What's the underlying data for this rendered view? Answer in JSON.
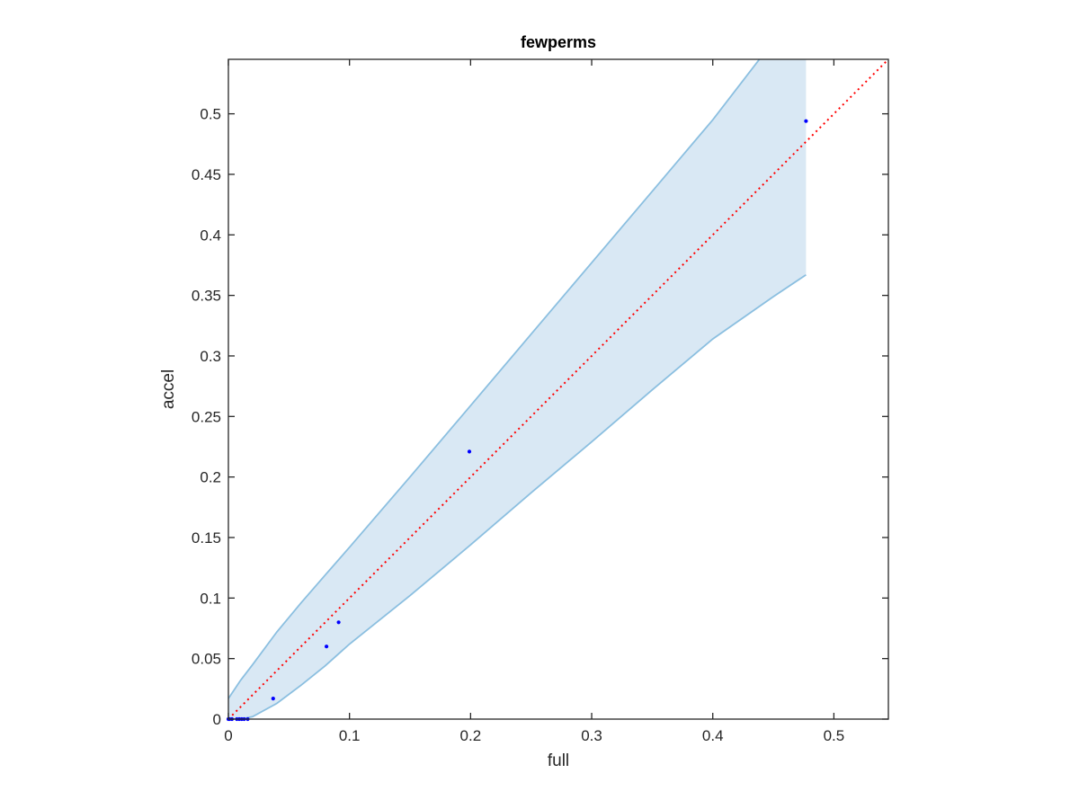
{
  "chart_data": {
    "type": "scatter",
    "title": "fewperms",
    "xlabel": "full",
    "ylabel": "accel",
    "xlim": [
      0,
      0.545
    ],
    "ylim": [
      0,
      0.545
    ],
    "x_ticks": [
      {
        "value": 0,
        "label": "0"
      },
      {
        "value": 0.1,
        "label": "0.1"
      },
      {
        "value": 0.2,
        "label": "0.2"
      },
      {
        "value": 0.3,
        "label": "0.3"
      },
      {
        "value": 0.4,
        "label": "0.4"
      },
      {
        "value": 0.5,
        "label": "0.5"
      }
    ],
    "y_ticks": [
      {
        "value": 0,
        "label": "0"
      },
      {
        "value": 0.05,
        "label": "0.05"
      },
      {
        "value": 0.1,
        "label": "0.1"
      },
      {
        "value": 0.15,
        "label": "0.15"
      },
      {
        "value": 0.2,
        "label": "0.2"
      },
      {
        "value": 0.25,
        "label": "0.25"
      },
      {
        "value": 0.3,
        "label": "0.3"
      },
      {
        "value": 0.35,
        "label": "0.35"
      },
      {
        "value": 0.4,
        "label": "0.4"
      },
      {
        "value": 0.45,
        "label": "0.45"
      },
      {
        "value": 0.5,
        "label": "0.5"
      }
    ],
    "grid": false,
    "box": true,
    "points": {
      "color": "#0000ff",
      "x": [
        0,
        0.001,
        0.003,
        0.007,
        0.009,
        0.011,
        0.013,
        0.016,
        0.037,
        0.081,
        0.091,
        0.199,
        0.477
      ],
      "y": [
        0,
        0,
        0,
        0,
        0,
        0,
        0,
        0,
        0.017,
        0.06,
        0.08,
        0.221,
        0.494
      ]
    },
    "reference_line": {
      "color": "#ff0000",
      "style": "dotted",
      "x": [
        0,
        0.545
      ],
      "y": [
        0,
        0.545
      ]
    },
    "confidence_band": {
      "fill_color": "#d9e8f4",
      "edge_color": "#8bbfe0",
      "x": [
        0,
        0.01,
        0.02,
        0.04,
        0.06,
        0.08,
        0.1,
        0.15,
        0.2,
        0.25,
        0.3,
        0.35,
        0.4,
        0.45,
        0.477
      ],
      "upper": [
        0.017,
        0.032,
        0.045,
        0.072,
        0.096,
        0.119,
        0.142,
        0.2,
        0.259,
        0.318,
        0.377,
        0.436,
        0.495,
        0.56,
        0.6
      ],
      "lower": [
        0,
        0,
        0.002,
        0.013,
        0.028,
        0.044,
        0.062,
        0.102,
        0.144,
        0.187,
        0.229,
        0.272,
        0.314,
        0.349,
        0.367
      ]
    }
  }
}
